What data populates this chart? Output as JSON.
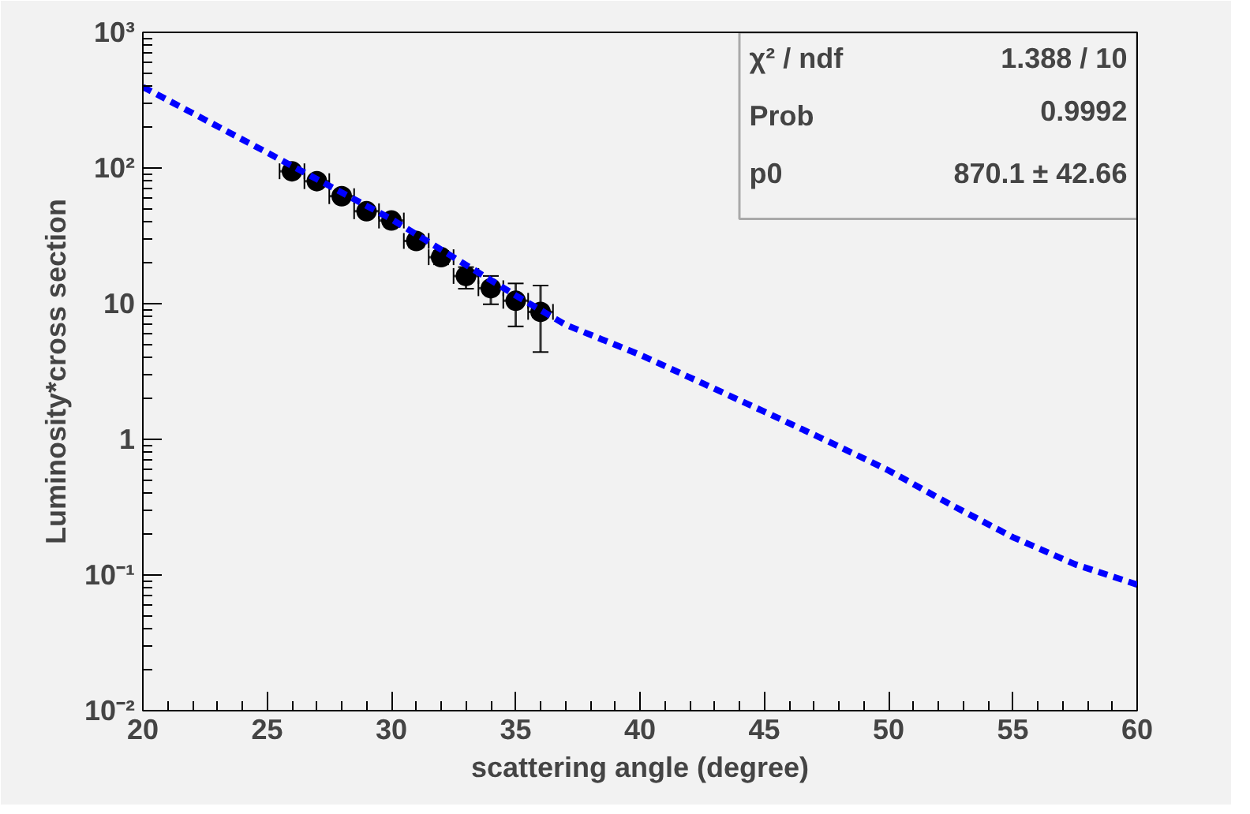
{
  "chart_data": {
    "type": "scatter",
    "xlabel": "scattering angle (degree)",
    "ylabel": "Luminosity*cross section",
    "log": "y",
    "grid": false,
    "xlim": [
      20,
      60
    ],
    "xticks": [
      20,
      25,
      30,
      35,
      40,
      45,
      50,
      55,
      60
    ],
    "ylim": [
      0.01,
      1000
    ],
    "yticks": [
      {
        "value": 0.01,
        "label": "10⁻²"
      },
      {
        "value": 0.1,
        "label": "10⁻¹"
      },
      1,
      10,
      {
        "value": 100,
        "label": "10²"
      },
      {
        "value": 1000,
        "label": "10³"
      }
    ],
    "series": [
      {
        "color": "#000000",
        "marker": "circle",
        "x": [
          26,
          27,
          28,
          29,
          30,
          31,
          32,
          33,
          34,
          35,
          36
        ],
        "values": [
          94.6,
          80,
          62,
          48,
          41,
          29,
          22,
          16,
          13,
          10.5,
          8.7
        ],
        "errors": [
          [
            88,
            101
          ],
          [
            74,
            86
          ],
          [
            57,
            67
          ],
          [
            44,
            52
          ],
          [
            37,
            45
          ],
          [
            26,
            32
          ],
          [
            19.5,
            24.5
          ],
          [
            12.9,
            18.6
          ],
          [
            9.9,
            16
          ],
          [
            6.8,
            14.1
          ],
          [
            4.4,
            13.6
          ]
        ],
        "xerrors": [
          0.5,
          0.5,
          0.5,
          0.5,
          0.5,
          0.5,
          0.5,
          0.5,
          0.5,
          0.5,
          0.5
        ]
      },
      {
        "type": "line",
        "color": "#0000ff",
        "line_style": "dashed",
        "marker": "none",
        "x": [
          20,
          25,
          30,
          35,
          37,
          40,
          42.5,
          45,
          47.5,
          50,
          52.5,
          55,
          57.5,
          60
        ],
        "values": [
          396,
          130,
          42,
          11.5,
          7.0,
          4.2,
          2.6,
          1.6,
          0.98,
          0.59,
          0.33,
          0.19,
          0.12,
          0.085
        ]
      }
    ],
    "annotations": [
      "χ² / ndf",
      "1.388 / 10",
      "Prob",
      "0.9992",
      "p0",
      "870.1 ± 42.66"
    ]
  }
}
